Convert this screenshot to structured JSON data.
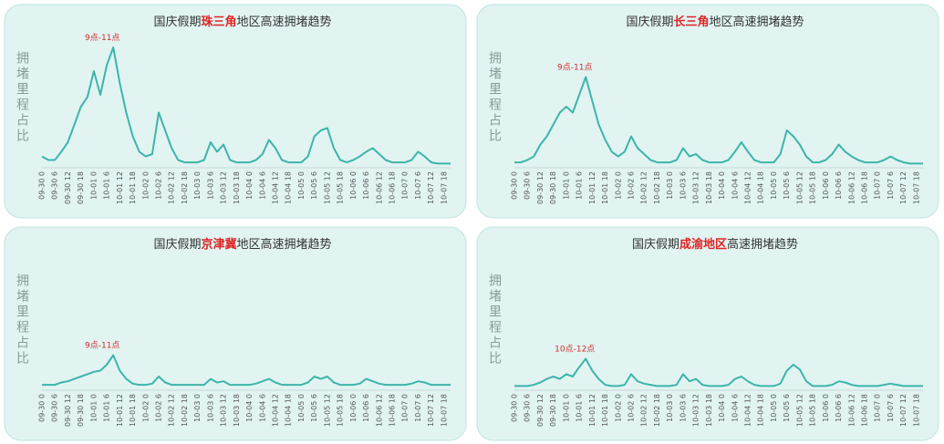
{
  "chart_data": [
    {
      "type": "line",
      "title": [
        "国庆假期",
        "珠三角",
        "地区高速拥堵趋势"
      ],
      "title_highlight_color": "#e02424",
      "y_label": "拥堵里程占比",
      "annotation": "9点-11点",
      "color": "#3db5aa",
      "ylim": [
        0,
        100
      ],
      "categories": [
        "09-30 0",
        null,
        "09-30 6",
        null,
        "09-30 12",
        null,
        "09-30 18",
        null,
        "10-01 0",
        null,
        "10-01 6",
        null,
        "10-01 12",
        null,
        "10-01 18",
        null,
        "10-02 0",
        null,
        "10-02 6",
        null,
        "10-02 12",
        null,
        "10-02 18",
        null,
        "10-03 0",
        null,
        "10-03 6",
        null,
        "10-03 12",
        null,
        "10-03 18",
        null,
        "10-04 0",
        null,
        "10-04 6",
        null,
        "10-04 12",
        null,
        "10-04 18",
        null,
        "10-05 0",
        null,
        "10-05 6",
        null,
        "10-05 12",
        null,
        "10-05 18",
        null,
        "10-06 0",
        null,
        "10-06 6",
        null,
        "10-06 12",
        null,
        "10-06 18",
        null,
        "10-07 0",
        null,
        "10-07 6",
        null,
        "10-07 12",
        null,
        "10-07 18",
        null
      ],
      "values": [
        8,
        5,
        5,
        12,
        20,
        35,
        50,
        58,
        80,
        60,
        85,
        100,
        70,
        45,
        25,
        12,
        8,
        10,
        45,
        30,
        15,
        5,
        3,
        3,
        3,
        5,
        20,
        12,
        18,
        5,
        3,
        3,
        3,
        5,
        10,
        22,
        15,
        5,
        3,
        3,
        3,
        8,
        25,
        30,
        32,
        15,
        5,
        3,
        5,
        8,
        12,
        15,
        10,
        5,
        3,
        3,
        3,
        5,
        12,
        8,
        3,
        2,
        2,
        2
      ]
    },
    {
      "type": "line",
      "title": [
        "国庆假期",
        "长三角",
        "地区高速拥堵趋势"
      ],
      "title_highlight_color": "#e02424",
      "y_label": "拥堵里程占比",
      "annotation": "9点-11点",
      "color": "#3db5aa",
      "ylim": [
        0,
        100
      ],
      "categories": [
        "09-30 0",
        null,
        "09-30 6",
        null,
        "09-30 12",
        null,
        "09-30 18",
        null,
        "10-01 0",
        null,
        "10-01 6",
        null,
        "10-01 12",
        null,
        "10-01 18",
        null,
        "10-02 0",
        null,
        "10-02 6",
        null,
        "10-02 12",
        null,
        "10-02 18",
        null,
        "10-03 0",
        null,
        "10-03 6",
        null,
        "10-03 12",
        null,
        "10-03 18",
        null,
        "10-04 0",
        null,
        "10-04 6",
        null,
        "10-04 12",
        null,
        "10-04 18",
        null,
        "10-05 0",
        null,
        "10-05 6",
        null,
        "10-05 12",
        null,
        "10-05 18",
        null,
        "10-06 0",
        null,
        "10-06 6",
        null,
        "10-06 12",
        null,
        "10-06 18",
        null,
        "10-07 0",
        null,
        "10-07 6",
        null,
        "10-07 12",
        null,
        "10-07 18",
        null
      ],
      "values": [
        3,
        3,
        5,
        8,
        18,
        25,
        35,
        45,
        50,
        45,
        60,
        75,
        55,
        35,
        22,
        12,
        8,
        12,
        25,
        15,
        10,
        5,
        3,
        3,
        3,
        5,
        15,
        8,
        10,
        5,
        3,
        3,
        3,
        5,
        12,
        20,
        12,
        5,
        3,
        3,
        3,
        10,
        30,
        25,
        18,
        8,
        3,
        3,
        5,
        10,
        18,
        12,
        8,
        5,
        3,
        3,
        3,
        5,
        8,
        5,
        3,
        2,
        2,
        2
      ]
    },
    {
      "type": "line",
      "title": [
        "国庆假期",
        "京津冀",
        "地区高速拥堵趋势"
      ],
      "title_highlight_color": "#e02424",
      "y_label": "拥堵里程占比",
      "annotation": "9点-11点",
      "color": "#3db5aa",
      "ylim": [
        0,
        100
      ],
      "categories": [
        "09-30 0",
        null,
        "09-30 6",
        null,
        "09-30 12",
        null,
        "09-30 18",
        null,
        "10-01 0",
        null,
        "10-01 6",
        null,
        "10-01 12",
        null,
        "10-01 18",
        null,
        "10-02 0",
        null,
        "10-02 6",
        null,
        "10-02 12",
        null,
        "10-02 18",
        null,
        "10-03 0",
        null,
        "10-03 6",
        null,
        "10-03 12",
        null,
        "10-03 18",
        null,
        "10-04 0",
        null,
        "10-04 6",
        null,
        "10-04 12",
        null,
        "10-04 18",
        null,
        "10-05 0",
        null,
        "10-05 6",
        null,
        "10-05 12",
        null,
        "10-05 18",
        null,
        "10-06 0",
        null,
        "10-06 6",
        null,
        "10-06 12",
        null,
        "10-06 18",
        null,
        "10-07 0",
        null,
        "10-07 6",
        null,
        "10-07 12",
        null,
        "10-07 18",
        null
      ],
      "values": [
        3,
        3,
        3,
        5,
        6,
        8,
        10,
        12,
        14,
        15,
        20,
        28,
        15,
        8,
        4,
        3,
        3,
        4,
        10,
        5,
        3,
        3,
        3,
        3,
        3,
        3,
        8,
        5,
        6,
        3,
        3,
        3,
        3,
        4,
        6,
        8,
        5,
        3,
        3,
        3,
        3,
        5,
        10,
        8,
        10,
        5,
        3,
        3,
        3,
        4,
        8,
        6,
        4,
        3,
        3,
        3,
        3,
        4,
        6,
        5,
        3,
        3,
        3,
        3
      ]
    },
    {
      "type": "line",
      "title": [
        "国庆假期",
        "成渝地区",
        "高速拥堵趋势"
      ],
      "title_highlight_color": "#e02424",
      "y_label": "拥堵里程占比",
      "annotation": "10点-12点",
      "color": "#3db5aa",
      "ylim": [
        0,
        100
      ],
      "categories": [
        "09-30 0",
        null,
        "09-30 6",
        null,
        "09-30 12",
        null,
        "09-30 18",
        null,
        "10-01 0",
        null,
        "10-01 6",
        null,
        "10-01 12",
        null,
        "10-01 18",
        null,
        "10-02 0",
        null,
        "10-02 6",
        null,
        "10-02 12",
        null,
        "10-02 18",
        null,
        "10-03 0",
        null,
        "10-03 6",
        null,
        "10-03 12",
        null,
        "10-03 18",
        null,
        "10-04 0",
        null,
        "10-04 6",
        null,
        "10-04 12",
        null,
        "10-04 18",
        null,
        "10-05 0",
        null,
        "10-05 6",
        null,
        "10-05 12",
        null,
        "10-05 18",
        null,
        "10-06 0",
        null,
        "10-06 6",
        null,
        "10-06 12",
        null,
        "10-06 18",
        null,
        "10-07 0",
        null,
        "10-07 6",
        null,
        "10-07 12",
        null,
        "10-07 18",
        null
      ],
      "values": [
        2,
        2,
        2,
        3,
        5,
        8,
        10,
        8,
        12,
        10,
        18,
        25,
        15,
        8,
        3,
        2,
        2,
        3,
        12,
        6,
        4,
        3,
        2,
        2,
        2,
        3,
        12,
        6,
        8,
        3,
        2,
        2,
        2,
        3,
        8,
        10,
        6,
        3,
        2,
        2,
        2,
        4,
        15,
        20,
        16,
        6,
        2,
        2,
        2,
        3,
        6,
        5,
        3,
        2,
        2,
        2,
        2,
        3,
        4,
        3,
        2,
        2,
        2,
        2
      ]
    }
  ]
}
